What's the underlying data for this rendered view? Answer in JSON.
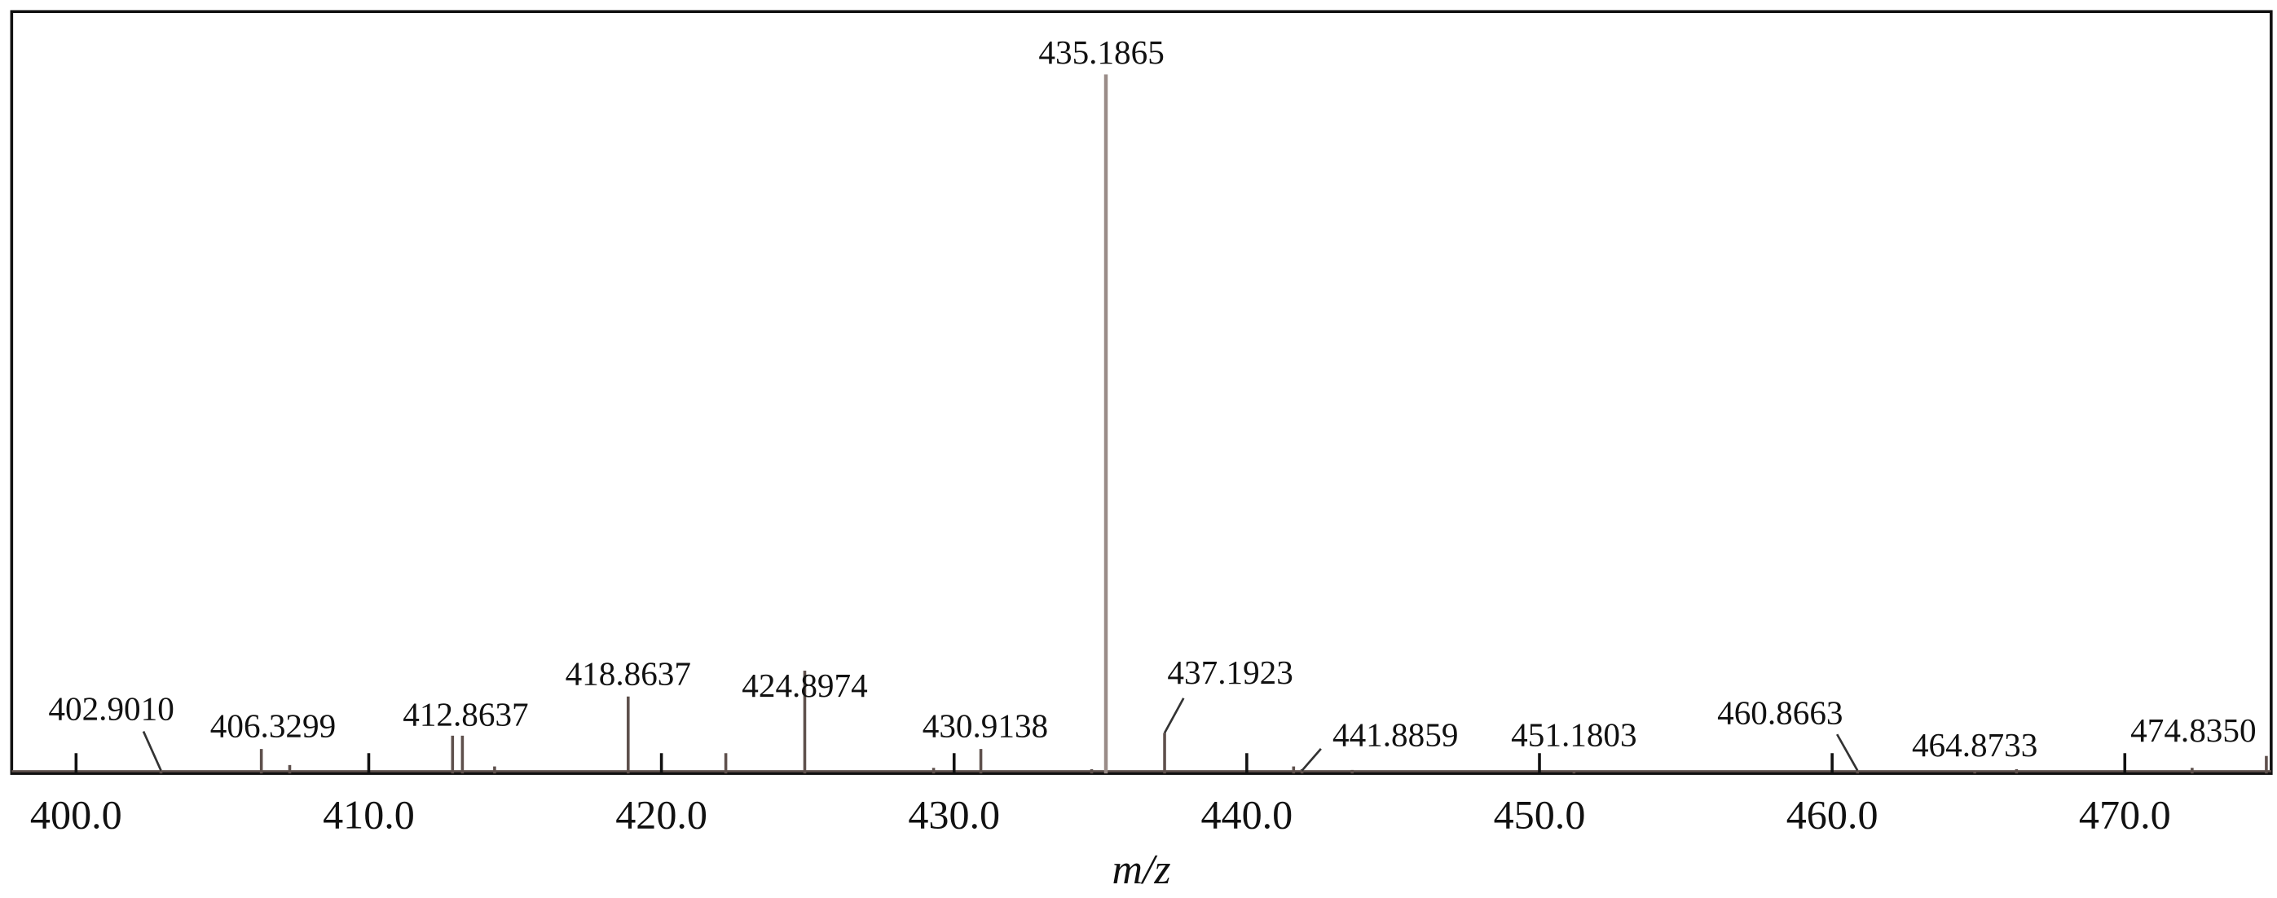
{
  "chart_data": {
    "type": "stem",
    "x_axis_label": "m/z",
    "x": [
      402.901,
      406.3299,
      412.8637,
      418.8637,
      424.8974,
      430.9138,
      435.1865,
      437.1923,
      441.8859,
      451.1803,
      460.8663,
      464.8733,
      474.835,
      413.2,
      422.2,
      407.3,
      414.3,
      429.3,
      434.7,
      441.6,
      443.6,
      466.3,
      472.3
    ],
    "x_labels": [
      "402.9010",
      "406.3299",
      "412.8637",
      "418.8637",
      "424.8974",
      "430.9138",
      "435.1865",
      "437.1923",
      "441.8859",
      "451.1803",
      "460.8663",
      "464.8733",
      "474.8350",
      null,
      null,
      null,
      null,
      null,
      null,
      null,
      null,
      null,
      null
    ],
    "values": [
      0.4,
      3.5,
      5.4,
      11,
      14.7,
      3.5,
      100,
      5.8,
      0.6,
      0.3,
      0.4,
      0.3,
      2.5,
      5.4,
      2.9,
      1.2,
      1.0,
      0.8,
      0.6,
      1.0,
      0.5,
      0.6,
      0.8
    ],
    "color": "#5e504c",
    "xlim": [
      397.8,
      475.0
    ],
    "ylim": [
      0,
      109
    ],
    "xticks": [
      {
        "value": 400,
        "label": "400.0"
      },
      {
        "value": 410,
        "label": "410.0"
      },
      {
        "value": 420,
        "label": "420.0"
      },
      {
        "value": 430,
        "label": "430.0"
      },
      {
        "value": 440,
        "label": "440.0"
      },
      {
        "value": 450,
        "label": "450.0"
      },
      {
        "value": 460,
        "label": "460.0"
      },
      {
        "value": 470,
        "label": "470.0"
      }
    ]
  }
}
